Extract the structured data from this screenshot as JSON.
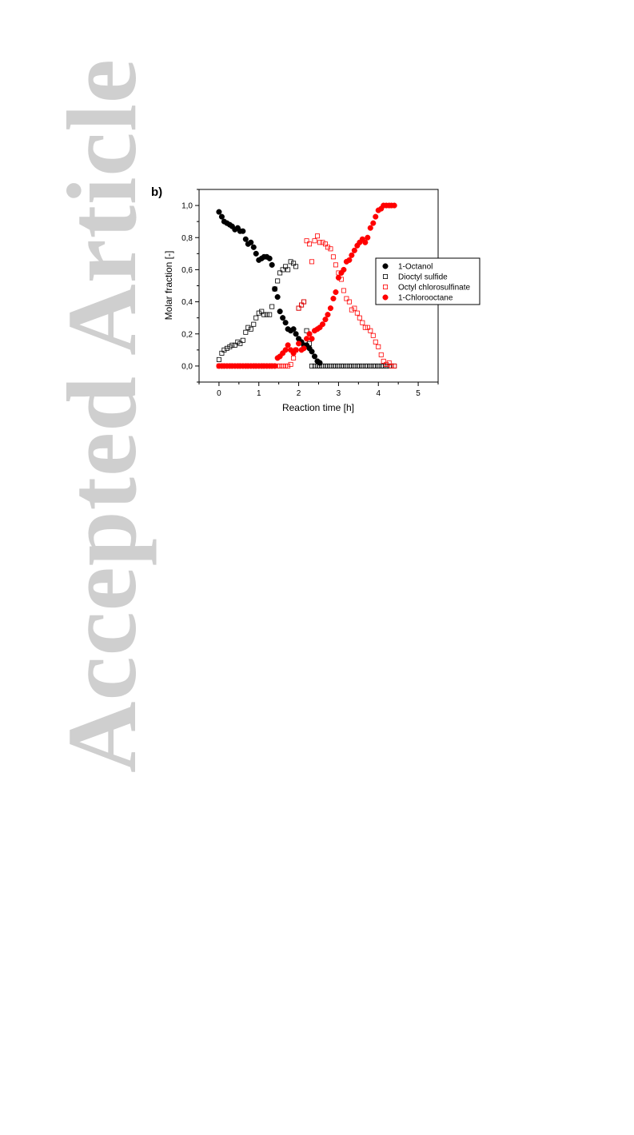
{
  "watermark": "Accepted Article",
  "panel_label": "b)",
  "chart_data": {
    "type": "scatter",
    "title": "",
    "xlabel": "Reaction time  [h]",
    "ylabel": "Molar fraction  [-]",
    "xlim": [
      -0.5,
      5.5
    ],
    "ylim": [
      -0.1,
      1.1
    ],
    "xticks": [
      0,
      1,
      2,
      3,
      4,
      5
    ],
    "xtick_labels": [
      "0",
      "1",
      "2",
      "3",
      "4",
      "5"
    ],
    "yticks": [
      0.0,
      0.2,
      0.4,
      0.6,
      0.8,
      1.0
    ],
    "ytick_labels": [
      "0,0",
      "0,2",
      "0,4",
      "0,6",
      "0,8",
      "1,0"
    ],
    "grid": false,
    "legend_position": "center-right",
    "series": [
      {
        "name": "1-Octanol",
        "marker": "filled-circle",
        "color": "#000000",
        "x": [
          0,
          0.07,
          0.13,
          0.2,
          0.27,
          0.33,
          0.4,
          0.47,
          0.53,
          0.6,
          0.67,
          0.73,
          0.8,
          0.87,
          0.93,
          1.0,
          1.07,
          1.13,
          1.2,
          1.27,
          1.33,
          1.4,
          1.47,
          1.53,
          1.6,
          1.67,
          1.73,
          1.8,
          1.87,
          1.93,
          2.0,
          2.07,
          2.13,
          2.2,
          2.27,
          2.33,
          2.4,
          2.47,
          2.53
        ],
        "y": [
          0.96,
          0.93,
          0.9,
          0.89,
          0.88,
          0.87,
          0.85,
          0.86,
          0.84,
          0.84,
          0.79,
          0.76,
          0.77,
          0.74,
          0.7,
          0.66,
          0.67,
          0.68,
          0.68,
          0.67,
          0.63,
          0.48,
          0.43,
          0.34,
          0.3,
          0.27,
          0.23,
          0.22,
          0.23,
          0.2,
          0.17,
          0.15,
          0.13,
          0.13,
          0.11,
          0.09,
          0.06,
          0.03,
          0.02
        ]
      },
      {
        "name": "Dioctyl sulfide",
        "marker": "open-square",
        "color": "#000000",
        "x": [
          0,
          0.07,
          0.13,
          0.2,
          0.27,
          0.33,
          0.4,
          0.47,
          0.53,
          0.6,
          0.67,
          0.73,
          0.8,
          0.87,
          0.93,
          1.0,
          1.07,
          1.13,
          1.2,
          1.27,
          1.33,
          1.4,
          1.47,
          1.53,
          1.6,
          1.67,
          1.73,
          1.8,
          1.87,
          1.93,
          2.0,
          2.07,
          2.13,
          2.2,
          2.27,
          2.33,
          2.4,
          2.47,
          2.53,
          2.6,
          2.67,
          2.73,
          2.8,
          2.87,
          2.93,
          3.0,
          3.07,
          3.13,
          3.2,
          3.27,
          3.33,
          3.4,
          3.47,
          3.53,
          3.6,
          3.67,
          3.73,
          3.8,
          3.87,
          3.93,
          4.0,
          4.07,
          4.13,
          4.2,
          4.27,
          4.33,
          4.4
        ],
        "y": [
          0.04,
          0.08,
          0.1,
          0.11,
          0.12,
          0.13,
          0.13,
          0.15,
          0.14,
          0.16,
          0.21,
          0.24,
          0.23,
          0.26,
          0.3,
          0.33,
          0.34,
          0.32,
          0.32,
          0.32,
          0.37,
          0.48,
          0.53,
          0.58,
          0.6,
          0.62,
          0.6,
          0.65,
          0.64,
          0.62,
          0.36,
          0.38,
          0.4,
          0.22,
          0.14,
          0.0,
          0.0,
          0.0,
          0.0,
          0.0,
          0.0,
          0.0,
          0.0,
          0.0,
          0.0,
          0.0,
          0.0,
          0.0,
          0.0,
          0.0,
          0.0,
          0.0,
          0.0,
          0.0,
          0.0,
          0.0,
          0.0,
          0.0,
          0.0,
          0.0,
          0.0,
          0.0,
          0.0,
          0.0,
          0.0,
          0.0,
          0.0
        ]
      },
      {
        "name": "Octyl chlorosulfinate",
        "marker": "open-square",
        "color": "#ff0000",
        "x": [
          0,
          0.07,
          0.13,
          0.2,
          0.27,
          0.33,
          0.4,
          0.47,
          0.53,
          0.6,
          0.67,
          0.73,
          0.8,
          0.87,
          0.93,
          1.0,
          1.07,
          1.13,
          1.2,
          1.27,
          1.33,
          1.4,
          1.47,
          1.53,
          1.6,
          1.67,
          1.73,
          1.8,
          1.87,
          1.93,
          2.0,
          2.07,
          2.13,
          2.2,
          2.27,
          2.33,
          2.4,
          2.47,
          2.53,
          2.6,
          2.67,
          2.73,
          2.8,
          2.87,
          2.93,
          3.0,
          3.07,
          3.13,
          3.2,
          3.27,
          3.33,
          3.4,
          3.47,
          3.53,
          3.6,
          3.67,
          3.73,
          3.8,
          3.87,
          3.93,
          4.0,
          4.07,
          4.13,
          4.2,
          4.27,
          4.33,
          4.4
        ],
        "y": [
          0.0,
          0.0,
          0.0,
          0.0,
          0.0,
          0.0,
          0.0,
          0.0,
          0.0,
          0.0,
          0.0,
          0.0,
          0.0,
          0.0,
          0.0,
          0.0,
          0.0,
          0.0,
          0.0,
          0.0,
          0.0,
          0.0,
          0.0,
          0.0,
          0.0,
          0.0,
          0.0,
          0.01,
          0.05,
          0.1,
          0.36,
          0.38,
          0.4,
          0.78,
          0.76,
          0.65,
          0.78,
          0.81,
          0.77,
          0.77,
          0.76,
          0.74,
          0.73,
          0.68,
          0.63,
          0.58,
          0.54,
          0.47,
          0.42,
          0.4,
          0.35,
          0.36,
          0.33,
          0.3,
          0.27,
          0.24,
          0.24,
          0.22,
          0.19,
          0.15,
          0.12,
          0.07,
          0.03,
          0.01,
          0.02,
          0.0,
          0.0
        ]
      },
      {
        "name": "1-Chlorooctane",
        "marker": "filled-circle",
        "color": "#ff0000",
        "x": [
          0,
          0.07,
          0.13,
          0.2,
          0.27,
          0.33,
          0.4,
          0.47,
          0.53,
          0.6,
          0.67,
          0.73,
          0.8,
          0.87,
          0.93,
          1.0,
          1.07,
          1.13,
          1.2,
          1.27,
          1.33,
          1.4,
          1.47,
          1.53,
          1.6,
          1.67,
          1.73,
          1.8,
          1.87,
          1.93,
          2.0,
          2.07,
          2.13,
          2.2,
          2.27,
          2.33,
          2.4,
          2.47,
          2.53,
          2.6,
          2.67,
          2.73,
          2.8,
          2.87,
          2.93,
          3.0,
          3.07,
          3.13,
          3.2,
          3.27,
          3.33,
          3.4,
          3.47,
          3.53,
          3.6,
          3.67,
          3.73,
          3.8,
          3.87,
          3.93,
          4.0,
          4.07,
          4.13,
          4.2,
          4.27,
          4.33,
          4.4
        ],
        "y": [
          0.0,
          0.0,
          0.0,
          0.0,
          0.0,
          0.0,
          0.0,
          0.0,
          0.0,
          0.0,
          0.0,
          0.0,
          0.0,
          0.0,
          0.0,
          0.0,
          0.0,
          0.0,
          0.0,
          0.0,
          0.0,
          0.0,
          0.05,
          0.06,
          0.08,
          0.1,
          0.13,
          0.1,
          0.08,
          0.1,
          0.14,
          0.1,
          0.11,
          0.17,
          0.2,
          0.17,
          0.22,
          0.23,
          0.24,
          0.26,
          0.29,
          0.32,
          0.36,
          0.42,
          0.46,
          0.55,
          0.58,
          0.6,
          0.65,
          0.66,
          0.69,
          0.72,
          0.75,
          0.77,
          0.79,
          0.77,
          0.8,
          0.86,
          0.89,
          0.93,
          0.97,
          0.98,
          1.0,
          1.0,
          1.0,
          1.0,
          1.0
        ]
      }
    ]
  }
}
